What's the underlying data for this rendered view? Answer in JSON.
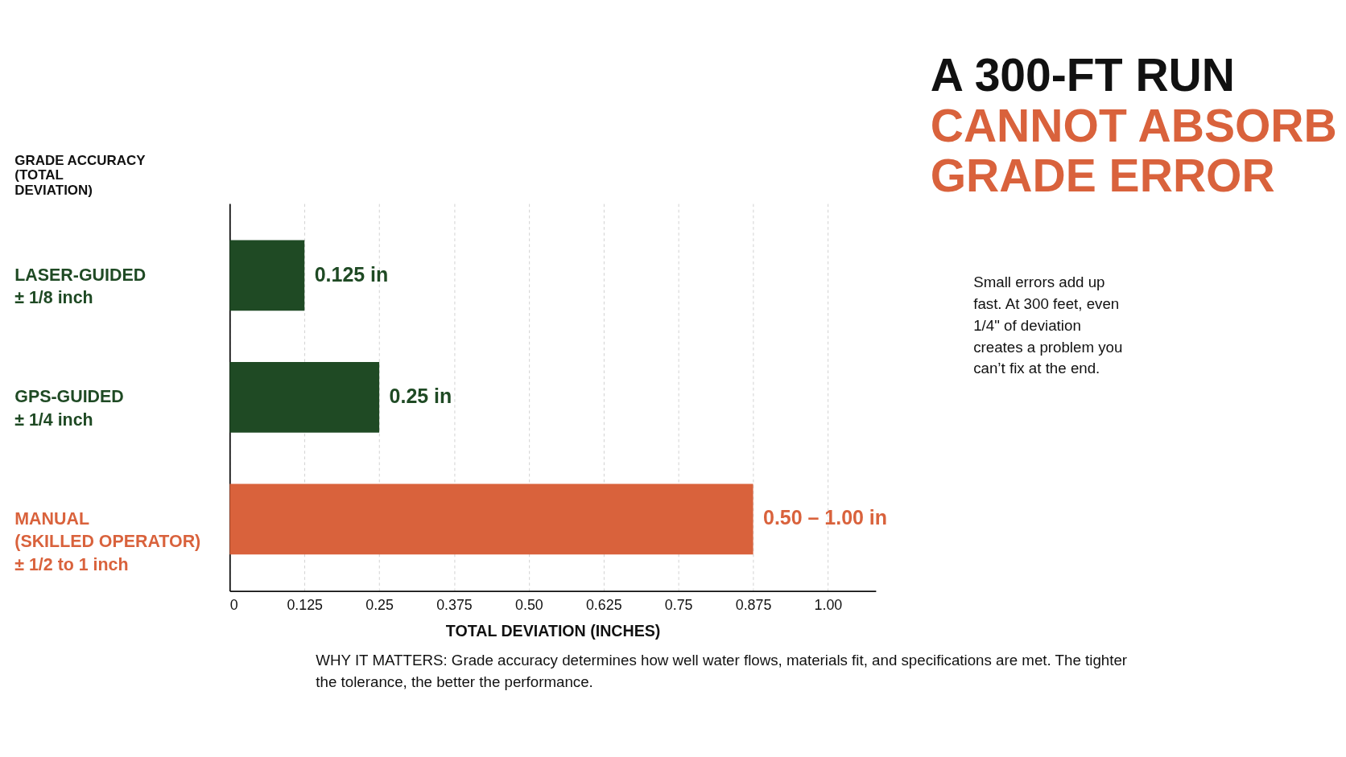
{
  "chart_data": {
    "type": "bar",
    "orientation": "horizontal",
    "title": "A 300-FT RUN",
    "subtitle": "CANNOT ABSORB GRADE ERROR",
    "ylabel": "GRADE ACCURACY (TOTAL DEVIATION)",
    "xlabel": "TOTAL DEVIATION (INCHES)",
    "categories": [
      "LASER-GUIDED\n± 1/8 inch",
      "GPS-GUIDED\n± 1/4 inch",
      "MANUAL\n(SKILLED OPERATOR)\n± 1/2 to 1 inch"
    ],
    "values": [
      0.125,
      0.25,
      0.875
    ],
    "colors": [
      "#1f4a24",
      "#1f4a24",
      "#d9623c"
    ],
    "value_labels": [
      "0.125 in",
      "0.25 in",
      null
    ],
    "xlim": [
      0,
      1.08
    ],
    "xticks": [
      0,
      0.125,
      0.25,
      0.375,
      {
        "value": 0.5,
        "label": "0.50"
      },
      0.625,
      0.75,
      0.875,
      {
        "value": 1,
        "label": "1.00"
      }
    ],
    "grid": "x",
    "annotations": [
      {
        "text": "0.50 – 1.00 in",
        "x": 0.875,
        "y": "MANUAL\n(SKILLED OPERATOR)\n± 1/2 to 1 inch"
      },
      "Small errors add up fast. At 300 feet, even 1/4\" of deviation creates a problem you can’t fix at the end.",
      "WHY IT MATTERS: Grade accuracy determines how well water flows, materials fit, and specifications are met. The tighter the tolerance, the better the performance."
    ]
  }
}
